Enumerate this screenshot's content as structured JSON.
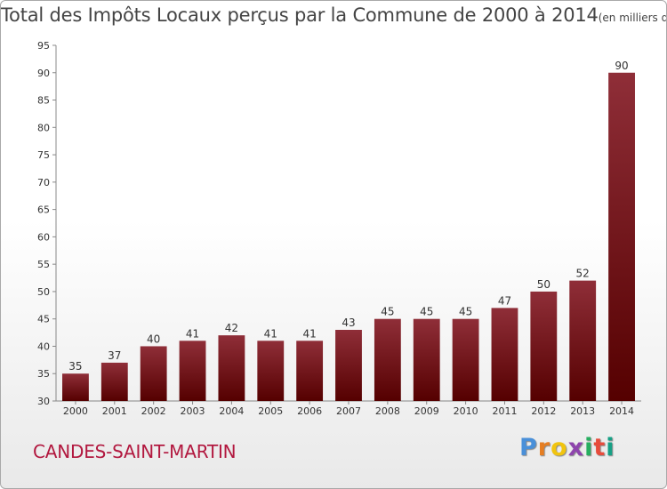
{
  "title": "Total des Impôts Locaux perçus par la Commune de 2000 à 2014",
  "unit": "(en milliers d'€)",
  "commune": "CANDES-SAINT-MARTIN",
  "logo": [
    "P",
    "r",
    "o",
    "x",
    "i",
    "t",
    "i"
  ],
  "logo_colors": [
    "#4a90d9",
    "#e67e22",
    "#f1c40f",
    "#8e44ad",
    "#27ae60",
    "#e74c3c",
    "#16a085"
  ],
  "colors": {
    "bar_top": "#8f2e38",
    "bar_bottom": "#550000",
    "title": "#444444",
    "commune": "#b2183f"
  },
  "chart_data": {
    "type": "bar",
    "title": "Total des Impôts Locaux perçus par la Commune de 2000 à 2014",
    "categories": [
      "2000",
      "2001",
      "2002",
      "2003",
      "2004",
      "2005",
      "2006",
      "2007",
      "2008",
      "2009",
      "2010",
      "2011",
      "2012",
      "2013",
      "2014"
    ],
    "values": [
      35,
      37,
      40,
      41,
      42,
      41,
      41,
      43,
      45,
      45,
      45,
      47,
      50,
      52,
      90
    ],
    "ylim": [
      30,
      95
    ],
    "yticks": [
      30,
      35,
      40,
      45,
      50,
      55,
      60,
      65,
      70,
      75,
      80,
      85,
      90,
      95
    ],
    "grid": false,
    "xlabel": "",
    "ylabel": ""
  }
}
